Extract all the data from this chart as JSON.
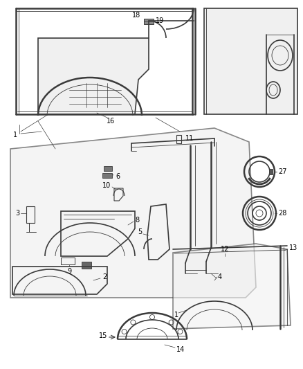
{
  "bg_color": "#ffffff",
  "line_color": "#3a3a3a",
  "fill_color": "#e8e8e8",
  "fig_width": 4.38,
  "fig_height": 5.33,
  "dpi": 100
}
